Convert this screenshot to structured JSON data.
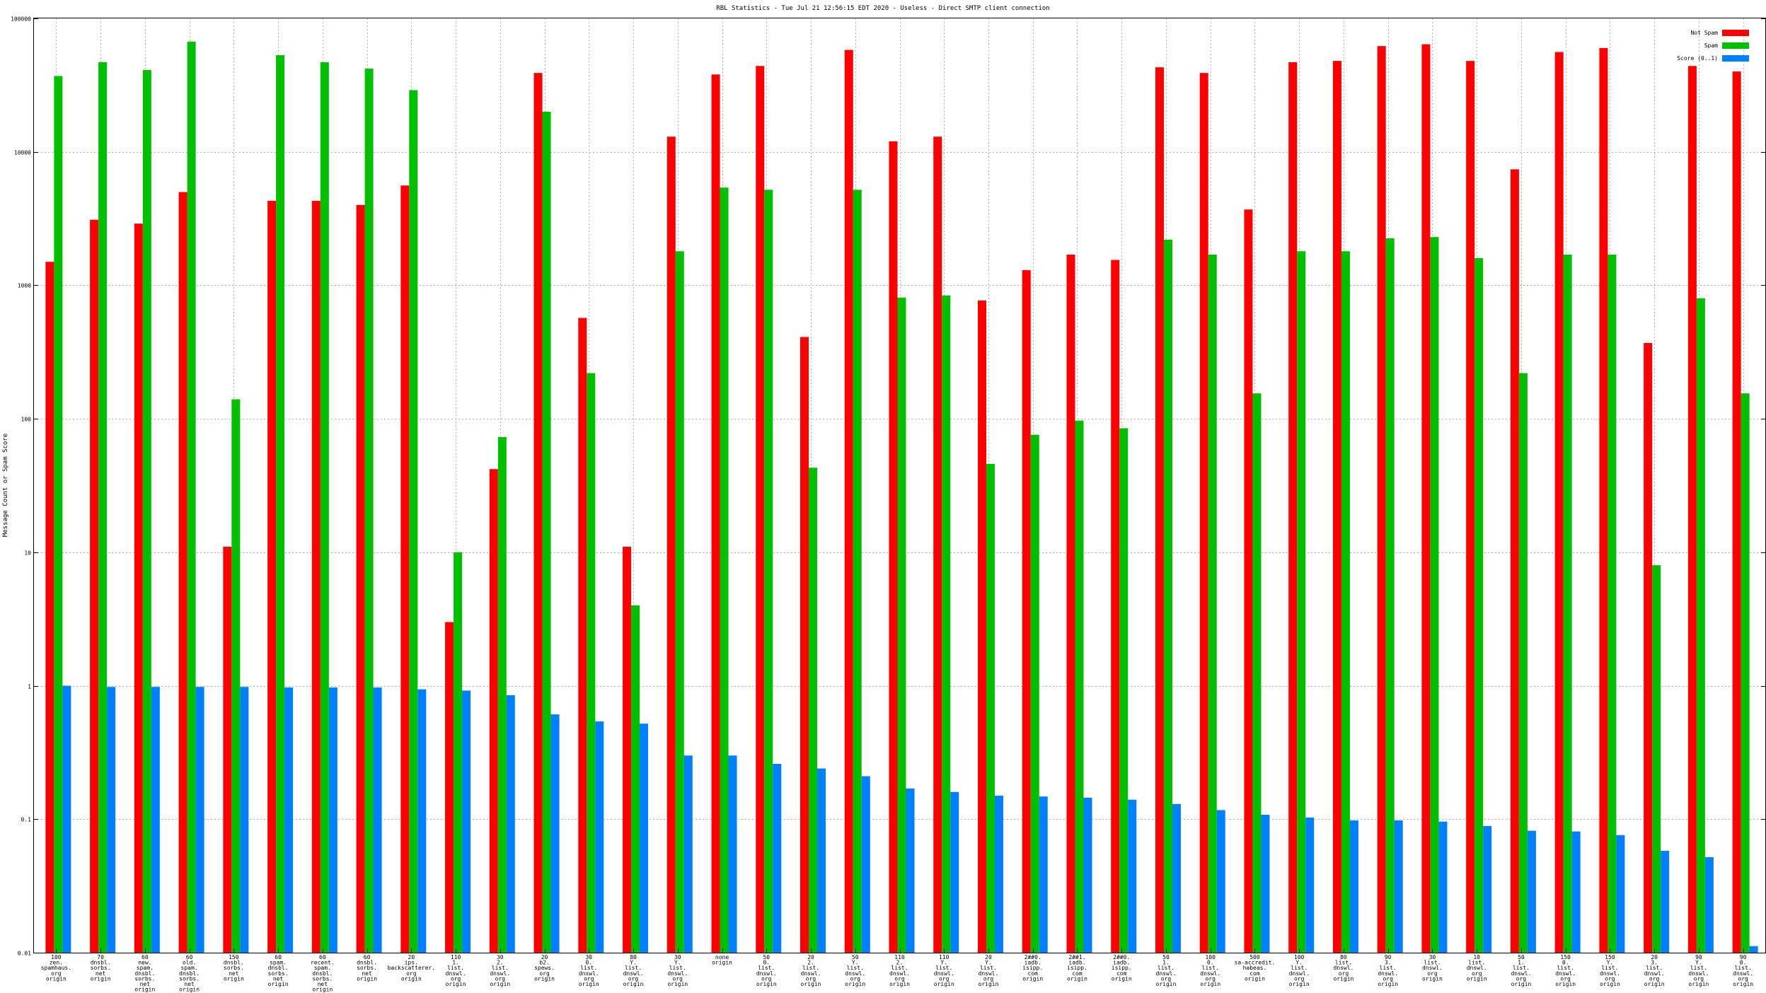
{
  "chart_data": {
    "type": "bar",
    "title": "RBL Statistics - Tue Jul 21 12:56:15 EDT 2020 - Useless - Direct SMTP client connection",
    "ylabel": "Message Count or Spam Score",
    "xlabel": "",
    "yscale": "log",
    "ylim": [
      0.01,
      100000
    ],
    "y_ticks": [
      0.01,
      0.1,
      1,
      10,
      100,
      1000,
      10000,
      100000
    ],
    "y_tick_labels": [
      "0.01",
      "0.1",
      "1",
      "10",
      "100",
      "1000",
      "10000",
      "100000"
    ],
    "grid": true,
    "legend_position": "top-right",
    "categories": [
      [
        "100",
        "zen.",
        "spamhaus.",
        "org",
        "origin"
      ],
      [
        "70",
        "dnsbl.",
        "sorbs.",
        "net",
        "origin"
      ],
      [
        "60",
        "new.",
        "spam.",
        "dnsbl.",
        "sorbs.",
        "net",
        "origin"
      ],
      [
        "60",
        "old.",
        "spam.",
        "dnsbl.",
        "sorbs.",
        "net",
        "origin"
      ],
      [
        "150",
        "dnsbl.",
        "sorbs.",
        "net",
        "origin"
      ],
      [
        "60",
        "spam.",
        "dnsbl.",
        "sorbs.",
        "net",
        "origin"
      ],
      [
        "60",
        "recent.",
        "spam.",
        "dnsbl.",
        "sorbs.",
        "net",
        "origin"
      ],
      [
        "60",
        "dnsbl.",
        "sorbs.",
        "net",
        "origin"
      ],
      [
        "20",
        "ips.",
        "backscatterer.",
        "org",
        "origin"
      ],
      [
        "110",
        "1.",
        "list.",
        "dnswl.",
        "org",
        "origin"
      ],
      [
        "30",
        "2.",
        "list.",
        "dnswl.",
        "org",
        "origin"
      ],
      [
        "20",
        "b2.",
        "spews.",
        "org",
        "origin"
      ],
      [
        "30",
        "0.",
        "list.",
        "dnswl.",
        "org",
        "origin"
      ],
      [
        "80",
        "Y.",
        "list.",
        "dnswl.",
        "org",
        "origin"
      ],
      [
        "30",
        "Y.",
        "list.",
        "dnswl.",
        "org",
        "origin"
      ],
      [
        "none",
        "origin"
      ],
      [
        "50",
        "0.",
        "list.",
        "dnswl.",
        "org",
        "origin"
      ],
      [
        "20",
        "2.",
        "list.",
        "dnswl.",
        "org",
        "origin"
      ],
      [
        "50",
        "Y.",
        "list.",
        "dnswl.",
        "org",
        "origin"
      ],
      [
        "110",
        "2.",
        "list.",
        "dnswl.",
        "org",
        "origin"
      ],
      [
        "110",
        "Y.",
        "list.",
        "dnswl.",
        "org",
        "origin"
      ],
      [
        "20",
        "Y.",
        "list.",
        "dnswl.",
        "org",
        "origin"
      ],
      [
        "2##0.",
        "iadb.",
        "isipp.",
        "com",
        "origin"
      ],
      [
        "2##1.",
        "iadb.",
        "isipp.",
        "com",
        "origin"
      ],
      [
        "2##0.",
        "iadb.",
        "isipp.",
        "com",
        "origin"
      ],
      [
        "50",
        "1.",
        "list.",
        "dnswl.",
        "org",
        "origin"
      ],
      [
        "100",
        "0.",
        "list.",
        "dnswl.",
        "org",
        "origin"
      ],
      [
        "500",
        "sa-accredit.",
        "habeas.",
        "com",
        "origin"
      ],
      [
        "100",
        "Y.",
        "list.",
        "dnswl.",
        "org",
        "origin"
      ],
      [
        "80",
        "list.",
        "dnswl.",
        "org",
        "origin"
      ],
      [
        "90",
        "3.",
        "list.",
        "dnswl.",
        "org",
        "origin"
      ],
      [
        "30",
        "list.",
        "dnswl.",
        "org",
        "origin"
      ],
      [
        "10",
        "list.",
        "dnswl.",
        "org",
        "origin"
      ],
      [
        "50",
        "1.",
        "list.",
        "dnswl.",
        "org",
        "origin"
      ],
      [
        "150",
        "0.",
        "list.",
        "dnswl.",
        "org",
        "origin"
      ],
      [
        "150",
        "Y.",
        "list.",
        "dnswl.",
        "org",
        "origin"
      ],
      [
        "20",
        "3.",
        "list.",
        "dnswl.",
        "org",
        "origin"
      ],
      [
        "90",
        "Y.",
        "list.",
        "dnswl.",
        "org",
        "origin"
      ],
      [
        "90",
        "0.",
        "list.",
        "dnswl.",
        "org",
        "origin"
      ]
    ],
    "series": [
      {
        "name": "Not Spam",
        "color": "#ff0000",
        "values": [
          1500,
          3100,
          2900,
          5000,
          11,
          4300,
          4300,
          4000,
          5600,
          3,
          42,
          39000,
          570,
          11,
          13000,
          38000,
          44000,
          410,
          58000,
          12000,
          13000,
          770,
          1300,
          1700,
          1550,
          43000,
          39000,
          3700,
          47000,
          48000,
          62000,
          64000,
          48000,
          7400,
          56000,
          60000,
          370,
          44000,
          40000
        ]
      },
      {
        "name": "Spam",
        "color": "#00c000",
        "values": [
          37000,
          47000,
          41000,
          67000,
          140,
          53000,
          47000,
          42000,
          29000,
          10,
          73,
          20000,
          220,
          4,
          1800,
          5400,
          5200,
          43,
          5200,
          810,
          840,
          46,
          76,
          97,
          85,
          2200,
          1700,
          155,
          1800,
          1800,
          2250,
          2300,
          1600,
          220,
          1700,
          1700,
          8,
          800,
          155
        ]
      },
      {
        "name": "Score (0..1)",
        "color": "#0080ff",
        "values": [
          1.0,
          0.98,
          0.98,
          0.98,
          0.98,
          0.97,
          0.97,
          0.97,
          0.94,
          0.92,
          0.85,
          0.61,
          0.54,
          0.52,
          0.3,
          0.3,
          0.26,
          0.24,
          0.21,
          0.17,
          0.16,
          0.15,
          0.148,
          0.145,
          0.14,
          0.13,
          0.117,
          0.108,
          0.103,
          0.098,
          0.098,
          0.096,
          0.089,
          0.082,
          0.081,
          0.076,
          0.058,
          0.052,
          0.0112
        ]
      }
    ]
  }
}
